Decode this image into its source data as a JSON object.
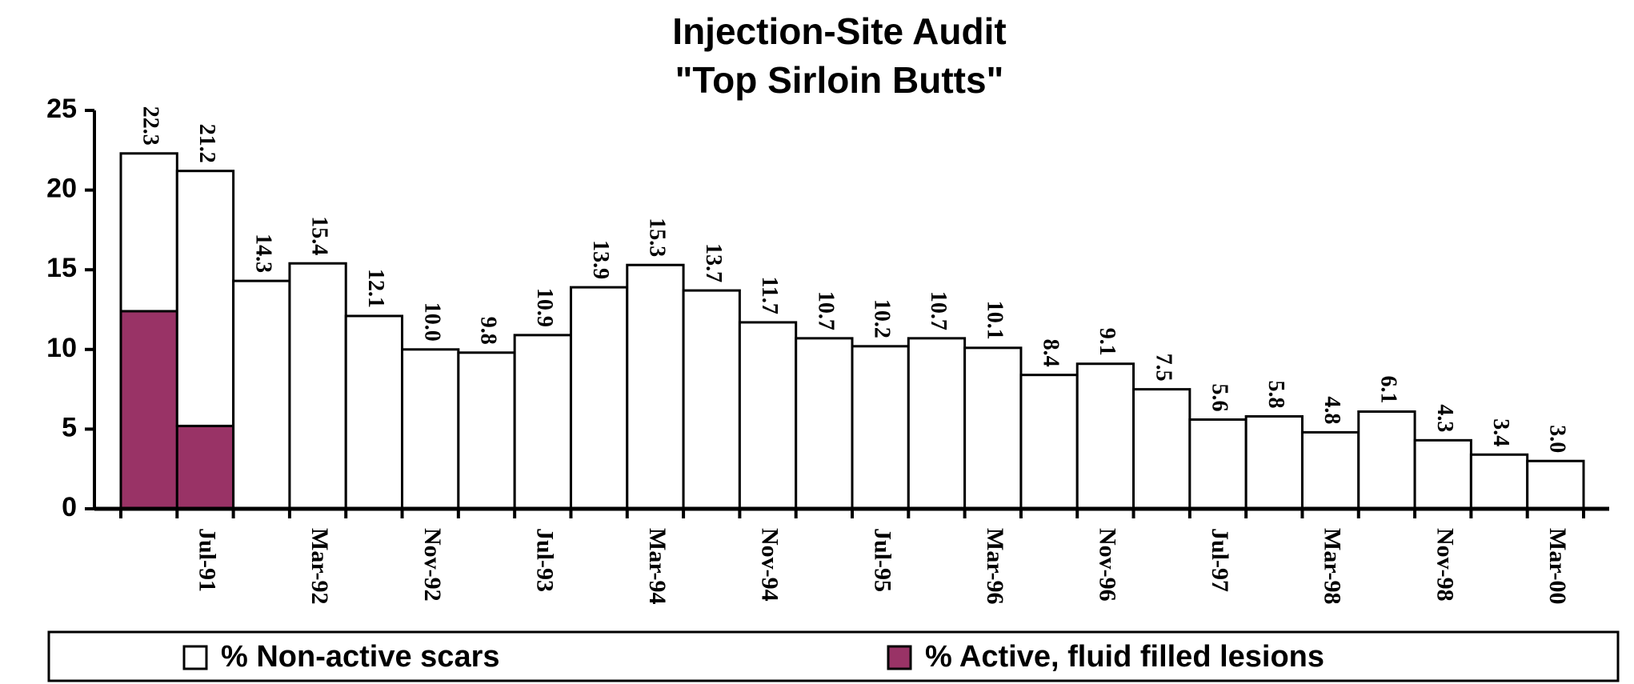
{
  "chart_data": {
    "type": "stacked_bar",
    "title": "Injection-Site Audit",
    "subtitle": "\"Top Sirloin Butts\"",
    "categories": [
      null,
      "Jul-91",
      null,
      "Mar-92",
      null,
      "Nov-92",
      null,
      "Jul-93",
      null,
      "Mar-94",
      null,
      "Nov-94",
      null,
      "Jul-95",
      null,
      "Mar-96",
      null,
      "Nov-96",
      null,
      "Jul-97",
      null,
      "Mar-98",
      null,
      "Nov-98",
      null,
      "Mar-00"
    ],
    "series": [
      {
        "name": "% Active, fluid filled lesions",
        "color": "#993366",
        "values": [
          12.4,
          5.2,
          null,
          null,
          null,
          null,
          null,
          null,
          null,
          null,
          null,
          null,
          null,
          null,
          null,
          null,
          null,
          null,
          null,
          null,
          null,
          null,
          null,
          null,
          null,
          null
        ]
      },
      {
        "name": "% Non-active scars",
        "color": "#ffffff",
        "values": [
          9.9,
          16.0,
          14.3,
          15.4,
          12.1,
          10.0,
          9.8,
          10.9,
          13.9,
          15.3,
          13.7,
          11.7,
          10.7,
          10.2,
          10.7,
          10.1,
          8.4,
          9.1,
          7.5,
          5.6,
          5.8,
          4.8,
          6.1,
          4.3,
          3.4,
          3.0
        ]
      }
    ],
    "totals": [
      "22.3",
      "21.2",
      "14.3",
      "15.4",
      "12.1",
      "10.0",
      "9.8",
      "10.9",
      "13.9",
      "15.3",
      "13.7",
      "11.7",
      "10.7",
      "10.2",
      "10.7",
      "10.1",
      "8.4",
      "9.1",
      "7.5",
      "5.6",
      "5.8",
      "4.8",
      "6.1",
      "4.3",
      "3.4",
      "3.0"
    ],
    "legend_order": [
      1,
      0
    ],
    "ylim": [
      0,
      25
    ],
    "yticks": [
      0,
      5,
      10,
      15,
      20,
      25
    ],
    "grid": false
  }
}
